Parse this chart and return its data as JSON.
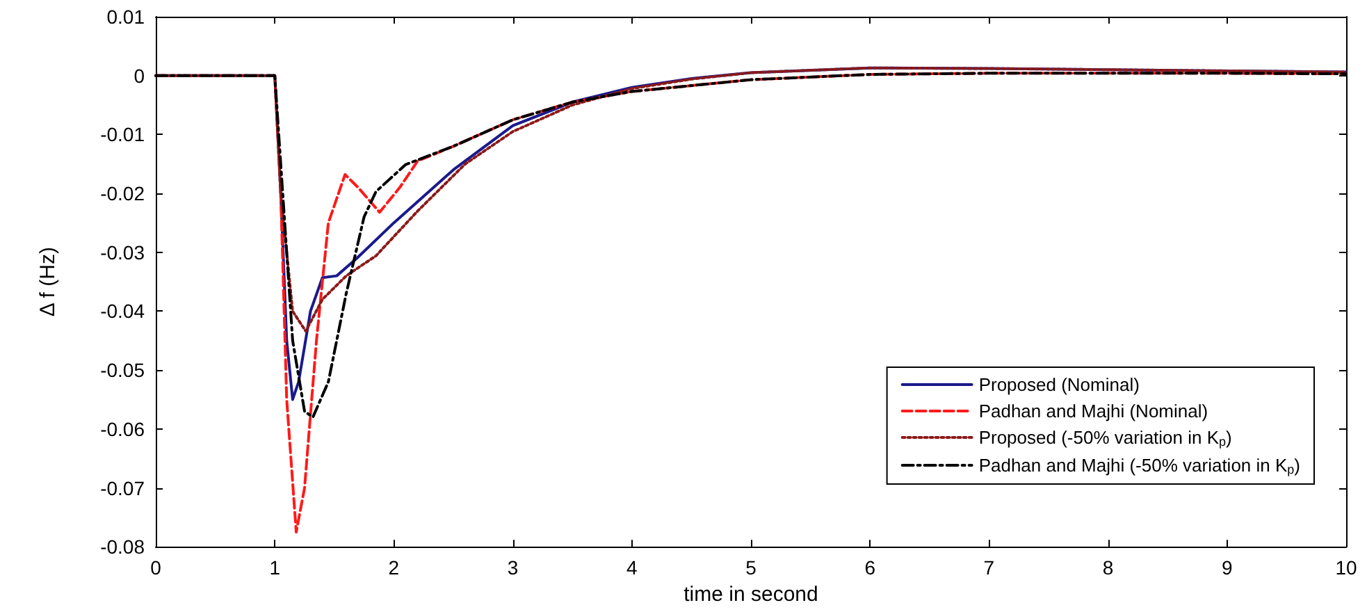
{
  "chart_data": {
    "type": "line",
    "xlabel": "time in second",
    "ylabel": "Δ f (Hz)",
    "xlim": [
      0,
      10
    ],
    "xticks": [
      0,
      1,
      2,
      3,
      4,
      5,
      6,
      7,
      8,
      9,
      10
    ],
    "ylim": [
      -0.08,
      0.01
    ],
    "yticks": [
      -0.08,
      -0.07,
      -0.06,
      -0.05,
      -0.04,
      -0.03,
      -0.02,
      -0.01,
      0,
      0.01
    ],
    "grid": false,
    "legend": "bottom right",
    "marker": "none",
    "series": [
      {
        "name": "Proposed (Nominal)",
        "color": "#1a1a8c",
        "line_style": "solid",
        "x": [
          0,
          1,
          1.05,
          1.1,
          1.15,
          1.2,
          1.3,
          1.4,
          1.52,
          1.69,
          2,
          2.5,
          3,
          3.5,
          4,
          4.5,
          5,
          6,
          7,
          8,
          9,
          10
        ],
        "values": [
          0,
          0,
          -0.02,
          -0.045,
          -0.055,
          -0.052,
          -0.04,
          -0.0343,
          -0.034,
          -0.031,
          -0.025,
          -0.016,
          -0.0085,
          -0.0045,
          -0.002,
          -0.0005,
          0.0005,
          0.0013,
          0.0012,
          0.001,
          0.0008,
          0.0006
        ]
      },
      {
        "name": "Padhan and Majhi (Nominal)",
        "color": "#ff1a1a",
        "line_style": "dashed",
        "x": [
          0,
          1,
          1.05,
          1.1,
          1.18,
          1.25,
          1.35,
          1.45,
          1.59,
          1.7,
          1.88,
          2.05,
          2.2,
          2.5,
          3,
          3.5,
          4,
          5,
          6,
          7,
          8,
          9,
          10
        ],
        "values": [
          0,
          0,
          -0.02,
          -0.055,
          -0.0775,
          -0.07,
          -0.045,
          -0.025,
          -0.0168,
          -0.019,
          -0.0232,
          -0.019,
          -0.0145,
          -0.012,
          -0.0075,
          -0.0045,
          -0.0027,
          -0.0007,
          0.0002,
          0.0004,
          0.0004,
          0.0004,
          0.0003
        ]
      },
      {
        "name": "Proposed (-50% variation in K$_{p}$)",
        "color": "#8b1a1a",
        "line_style": "dotted",
        "x": [
          0,
          1,
          1.05,
          1.15,
          1.26,
          1.4,
          1.6,
          1.85,
          2.2,
          2.6,
          3,
          3.5,
          4,
          4.5,
          5,
          6,
          7,
          8,
          9,
          10
        ],
        "values": [
          0,
          0,
          -0.02,
          -0.04,
          -0.0434,
          -0.038,
          -0.034,
          -0.0306,
          -0.023,
          -0.015,
          -0.0095,
          -0.005,
          -0.0022,
          -0.0006,
          0.0005,
          0.0013,
          0.0012,
          0.001,
          0.0008,
          0.0006
        ]
      },
      {
        "name": "Padhan and Majhi (-50% variation in K$_{p}$)",
        "color": "#000000",
        "line_style": "dashdot",
        "x": [
          0,
          1,
          1.05,
          1.15,
          1.25,
          1.32,
          1.45,
          1.6,
          1.75,
          1.85,
          2.1,
          2.5,
          3,
          3.5,
          4,
          5,
          6,
          7,
          8,
          9,
          10
        ],
        "values": [
          0,
          0,
          -0.015,
          -0.045,
          -0.057,
          -0.058,
          -0.052,
          -0.037,
          -0.024,
          -0.0197,
          -0.0151,
          -0.012,
          -0.0075,
          -0.0045,
          -0.0027,
          -0.0007,
          0.0002,
          0.0004,
          0.0004,
          0.0004,
          0.0003
        ]
      }
    ]
  }
}
